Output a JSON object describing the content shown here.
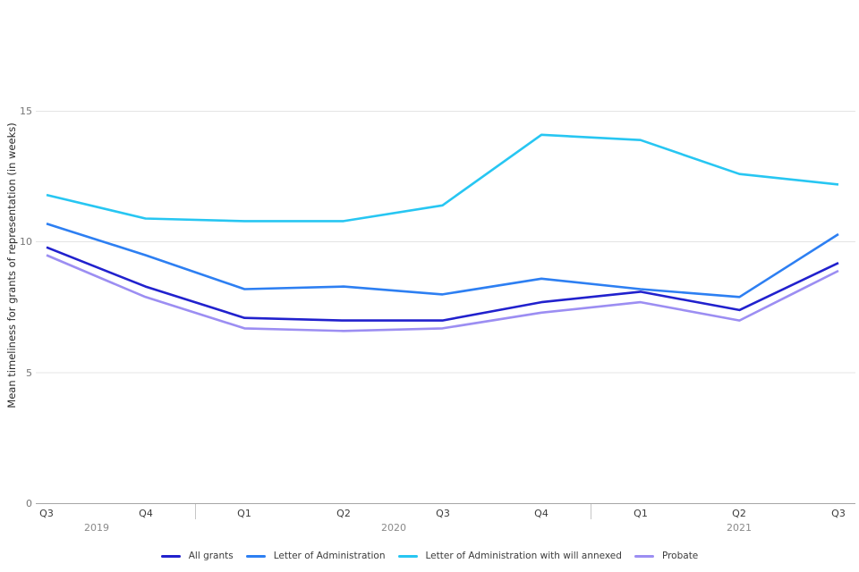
{
  "chart_data": {
    "type": "line",
    "title": "",
    "ylabel": "Mean timeliness for grants of representation (in weeks)",
    "xlabel": "",
    "yticks": [
      0,
      5,
      10,
      15
    ],
    "ylim": [
      0,
      15.7
    ],
    "grid": true,
    "legend_position": "bottom",
    "x_tick_labels": [
      "Q3",
      "Q4",
      "Q1",
      "Q2",
      "Q3",
      "Q4",
      "Q1",
      "Q2",
      "Q3"
    ],
    "year_groups": [
      {
        "label": "2019"
      },
      {
        "label": "2020"
      },
      {
        "label": "2021"
      }
    ],
    "categories": [
      "Q3 2019",
      "Q4 2019",
      "Q1 2020",
      "Q2 2020",
      "Q3 2020",
      "Q4 2020",
      "Q1 2021",
      "Q2 2021",
      "Q3 2021"
    ],
    "series": [
      {
        "name": "All grants",
        "color": "#2121cd",
        "values": [
          9.8,
          8.3,
          7.1,
          7.0,
          7.0,
          7.7,
          8.1,
          7.4,
          9.2
        ]
      },
      {
        "name": "Letter of Administration",
        "color": "#2d7ff2",
        "values": [
          10.7,
          9.5,
          8.2,
          8.3,
          8.0,
          8.6,
          8.2,
          7.9,
          10.3
        ]
      },
      {
        "name": "Letter of Administration with will annexed",
        "color": "#27c6f2",
        "values": [
          11.8,
          10.9,
          10.8,
          10.8,
          11.4,
          14.1,
          13.9,
          12.6,
          12.2
        ]
      },
      {
        "name": "Probate",
        "color": "#9c8ef2",
        "values": [
          9.5,
          7.9,
          6.7,
          6.6,
          6.7,
          7.3,
          7.7,
          7.0,
          8.9
        ]
      }
    ]
  }
}
